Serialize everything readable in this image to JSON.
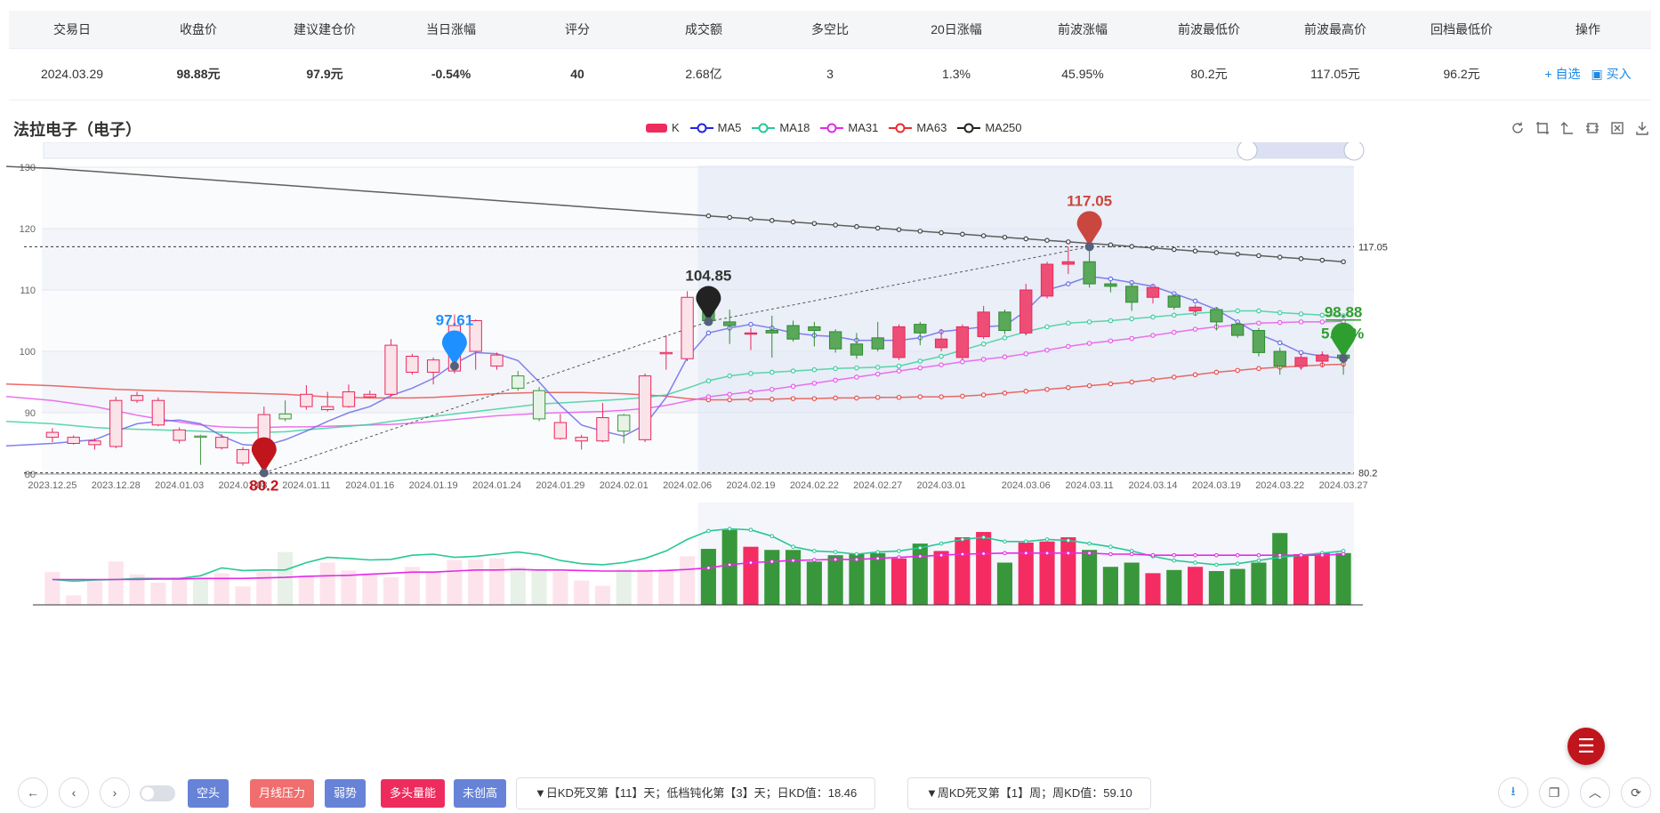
{
  "table": {
    "headers": [
      "交易日",
      "收盘价",
      "建议建仓价",
      "当日涨幅",
      "评分",
      "成交额",
      "多空比",
      "20日涨幅",
      "前波涨幅",
      "前波最低价",
      "前波最高价",
      "回档最低价",
      "操作"
    ],
    "row": {
      "date": "2024.03.29",
      "close": "98.88元",
      "suggest_price": "97.9元",
      "day_change": "-0.54%",
      "score": "40",
      "turnover": "2.68亿",
      "ls_ratio": "3",
      "change_20d": "1.3%",
      "prev_wave_change": "45.95%",
      "prev_wave_low": "80.2元",
      "prev_wave_high": "117.05元",
      "pullback_low": "96.2元",
      "action_watch": "+ 自选",
      "action_buy": "买入"
    }
  },
  "stock_name": "法拉电子（电子）",
  "legend": [
    {
      "name": "K",
      "color": "#ee2b5d"
    },
    {
      "name": "MA5",
      "color": "#2323e6"
    },
    {
      "name": "MA18",
      "color": "#27c795"
    },
    {
      "name": "MA31",
      "color": "#e629e6"
    },
    {
      "name": "MA63",
      "color": "#e82e2e"
    },
    {
      "name": "MA250",
      "color": "#222222"
    }
  ],
  "tool_icons": [
    "refresh-icon",
    "zoom-area-icon",
    "zoom-reset-icon",
    "restore-icon",
    "clear-icon",
    "download-icon"
  ],
  "chart_data": {
    "type": "candlestick",
    "ylim": [
      80,
      130
    ],
    "yticks": [
      80,
      90,
      100,
      110,
      120,
      130
    ],
    "date_labels": [
      "2023.12.25",
      "2023.12.28",
      "2024.01.03",
      "2024.01.08",
      "2024.01.11",
      "2024.01.16",
      "2024.01.19",
      "2024.01.24",
      "2024.01.29",
      "2024.02.01",
      "2024.02.06",
      "2024.02.19",
      "2024.02.22",
      "2024.02.27",
      "2024.03.01",
      "2024.03.06",
      "2024.03.11",
      "2024.03.14",
      "2024.03.19",
      "2024.03.22",
      "2024.03.27"
    ],
    "candles": [
      {
        "o": 86.0,
        "c": 86.8,
        "h": 87.5,
        "l": 85.2
      },
      {
        "o": 85.0,
        "c": 86.0,
        "h": 86.3,
        "l": 84.8
      },
      {
        "o": 84.8,
        "c": 85.4,
        "h": 85.8,
        "l": 84.0
      },
      {
        "o": 84.5,
        "c": 92.0,
        "h": 92.6,
        "l": 84.2
      },
      {
        "o": 92.0,
        "c": 92.8,
        "h": 93.4,
        "l": 91.6
      },
      {
        "o": 88.0,
        "c": 92.0,
        "h": 92.5,
        "l": 87.8
      },
      {
        "o": 85.5,
        "c": 87.2,
        "h": 87.6,
        "l": 85.0
      },
      {
        "o": 86.2,
        "c": 86.0,
        "h": 86.4,
        "l": 81.5
      },
      {
        "o": 84.3,
        "c": 86.0,
        "h": 86.5,
        "l": 84.0
      },
      {
        "o": 81.8,
        "c": 84.0,
        "h": 84.4,
        "l": 81.4
      },
      {
        "o": 82.6,
        "c": 89.7,
        "h": 91.0,
        "l": 82.3
      },
      {
        "o": 89.8,
        "c": 89.0,
        "h": 92.0,
        "l": 88.6
      },
      {
        "o": 91.0,
        "c": 93.0,
        "h": 94.5,
        "l": 90.5
      },
      {
        "o": 90.5,
        "c": 91.0,
        "h": 93.4,
        "l": 90.2
      },
      {
        "o": 91.0,
        "c": 93.4,
        "h": 94.6,
        "l": 90.8
      },
      {
        "o": 92.6,
        "c": 93.0,
        "h": 93.6,
        "l": 92.4
      },
      {
        "o": 93.0,
        "c": 101.0,
        "h": 102.0,
        "l": 92.6
      },
      {
        "o": 96.6,
        "c": 99.2,
        "h": 99.6,
        "l": 96.2
      },
      {
        "o": 96.6,
        "c": 98.6,
        "h": 99.0,
        "l": 94.6
      },
      {
        "o": 96.8,
        "c": 104.2,
        "h": 106.0,
        "l": 96.4
      },
      {
        "o": 100.0,
        "c": 105.0,
        "h": 105.2,
        "l": 97.0
      },
      {
        "o": 97.6,
        "c": 99.4,
        "h": 99.8,
        "l": 97.0
      },
      {
        "o": 96.0,
        "c": 94.0,
        "h": 96.8,
        "l": 93.6
      },
      {
        "o": 93.6,
        "c": 89.0,
        "h": 94.2,
        "l": 88.6
      },
      {
        "o": 85.8,
        "c": 88.4,
        "h": 89.8,
        "l": 85.6
      },
      {
        "o": 85.4,
        "c": 86.0,
        "h": 86.4,
        "l": 84.0
      },
      {
        "o": 85.4,
        "c": 89.2,
        "h": 91.6,
        "l": 85.2
      },
      {
        "o": 89.6,
        "c": 87.0,
        "h": 89.8,
        "l": 85.0
      },
      {
        "o": 85.6,
        "c": 96.0,
        "h": 96.4,
        "l": 85.2
      },
      {
        "o": 99.6,
        "c": 99.8,
        "h": 102.6,
        "l": 97.0
      },
      {
        "o": 98.8,
        "c": 108.8,
        "h": 109.8,
        "l": 98.4
      },
      {
        "o": 107.0,
        "c": 105.0,
        "h": 107.6,
        "l": 104.8
      },
      {
        "o": 104.8,
        "c": 104.2,
        "h": 106.8,
        "l": 101.2
      },
      {
        "o": 102.8,
        "c": 103.0,
        "h": 103.8,
        "l": 100.2
      },
      {
        "o": 103.4,
        "c": 103.0,
        "h": 105.8,
        "l": 99.0
      },
      {
        "o": 104.2,
        "c": 102.0,
        "h": 105.0,
        "l": 101.6
      },
      {
        "o": 104.0,
        "c": 103.4,
        "h": 104.8,
        "l": 100.8
      },
      {
        "o": 103.2,
        "c": 100.4,
        "h": 103.6,
        "l": 99.8
      },
      {
        "o": 101.2,
        "c": 99.4,
        "h": 103.0,
        "l": 98.8
      },
      {
        "o": 102.2,
        "c": 100.4,
        "h": 104.8,
        "l": 100.0
      },
      {
        "o": 99.0,
        "c": 104.0,
        "h": 104.4,
        "l": 98.6
      },
      {
        "o": 104.4,
        "c": 103.0,
        "h": 104.8,
        "l": 101.0
      },
      {
        "o": 100.6,
        "c": 102.0,
        "h": 103.6,
        "l": 100.0
      },
      {
        "o": 99.0,
        "c": 104.0,
        "h": 104.4,
        "l": 98.6
      },
      {
        "o": 102.4,
        "c": 106.4,
        "h": 107.4,
        "l": 102.0
      },
      {
        "o": 106.4,
        "c": 103.4,
        "h": 106.8,
        "l": 102.8
      },
      {
        "o": 103.0,
        "c": 110.0,
        "h": 111.0,
        "l": 102.6
      },
      {
        "o": 109.0,
        "c": 114.2,
        "h": 114.6,
        "l": 108.6
      },
      {
        "o": 114.2,
        "c": 114.6,
        "h": 117.05,
        "l": 112.6
      },
      {
        "o": 114.6,
        "c": 111.0,
        "h": 116.6,
        "l": 110.4
      },
      {
        "o": 111.0,
        "c": 110.6,
        "h": 111.4,
        "l": 109.6
      },
      {
        "o": 110.6,
        "c": 108.0,
        "h": 111.2,
        "l": 106.6
      },
      {
        "o": 108.8,
        "c": 110.4,
        "h": 110.8,
        "l": 107.8
      },
      {
        "o": 109.0,
        "c": 107.2,
        "h": 109.4,
        "l": 106.8
      },
      {
        "o": 106.6,
        "c": 107.2,
        "h": 107.6,
        "l": 105.8
      },
      {
        "o": 106.8,
        "c": 104.8,
        "h": 107.2,
        "l": 103.4
      },
      {
        "o": 104.4,
        "c": 102.6,
        "h": 104.8,
        "l": 102.2
      },
      {
        "o": 103.4,
        "c": 99.8,
        "h": 103.8,
        "l": 99.2
      },
      {
        "o": 100.0,
        "c": 97.6,
        "h": 100.6,
        "l": 96.2
      },
      {
        "o": 97.6,
        "c": 99.0,
        "h": 99.6,
        "l": 97.0
      },
      {
        "o": 98.4,
        "c": 99.4,
        "h": 100.0,
        "l": 97.4
      },
      {
        "o": 99.4,
        "c": 98.88,
        "h": 101.2,
        "l": 96.2
      }
    ],
    "ma5": [
      85,
      85.3,
      85.6,
      87,
      88.2,
      88.6,
      88.8,
      88.2,
      86.2,
      84.8,
      84.6,
      85.6,
      87,
      88.6,
      90,
      91,
      92.8,
      94,
      95.6,
      98,
      99.8,
      99.6,
      98.5,
      95,
      91.2,
      88,
      87,
      86.2,
      88,
      92.5,
      99,
      103,
      103.8,
      104.4,
      103.8,
      103,
      102.6,
      102.4,
      101.8,
      101.8,
      101.8,
      102.2,
      103.2,
      103.6,
      104,
      104.2,
      106.6,
      110,
      111,
      112.2,
      111.8,
      111.2,
      110.6,
      109.4,
      108.2,
      106.8,
      104.8,
      102.8,
      101.4,
      99.8,
      99.2,
      98.9
    ],
    "ma18": [
      88.2,
      87.9,
      87.6,
      87.4,
      87.3,
      87.2,
      87.1,
      87.0,
      86.8,
      86.7,
      86.8,
      86.9,
      87.2,
      87.5,
      87.8,
      88.1,
      88.6,
      89.0,
      89.4,
      89.8,
      90.2,
      90.6,
      91.0,
      91.4,
      91.6,
      91.8,
      92.0,
      92.2,
      92.5,
      92.9,
      94.0,
      95.2,
      96.0,
      96.4,
      96.6,
      96.8,
      97.0,
      97.2,
      97.3,
      97.4,
      97.6,
      98.4,
      99.2,
      100.2,
      101.2,
      102.2,
      103.2,
      104.0,
      104.6,
      104.8,
      105.0,
      105.3,
      105.6,
      105.9,
      106.2,
      106.4,
      106.6,
      106.6,
      106.3,
      106.1,
      105.9,
      105.8
    ],
    "ma31": [
      92.0,
      91.5,
      91.0,
      90.3,
      89.6,
      89.0,
      88.5,
      88.0,
      87.7,
      87.6,
      87.6,
      87.7,
      87.7,
      87.8,
      87.9,
      88.0,
      88.1,
      88.3,
      88.6,
      88.9,
      89.2,
      89.5,
      89.7,
      89.9,
      90.0,
      90.1,
      90.2,
      90.4,
      90.7,
      91.2,
      91.9,
      92.6,
      93.0,
      93.4,
      93.8,
      94.3,
      94.8,
      95.3,
      95.8,
      96.3,
      96.8,
      97.3,
      97.8,
      98.3,
      98.7,
      99.1,
      99.6,
      100.2,
      100.8,
      101.3,
      101.7,
      102.1,
      102.6,
      103.1,
      103.6,
      104.0,
      104.3,
      104.6,
      104.7,
      104.8,
      104.8,
      104.9
    ],
    "ma63": [
      94.4,
      94.2,
      94.0,
      93.8,
      93.7,
      93.6,
      93.5,
      93.4,
      93.3,
      93.2,
      93.1,
      93.0,
      92.8,
      92.6,
      92.5,
      92.4,
      92.4,
      92.4,
      92.5,
      92.7,
      92.9,
      93.1,
      93.2,
      93.3,
      93.3,
      93.3,
      93.2,
      93.1,
      92.9,
      92.7,
      92.3,
      92.1,
      92.1,
      92.2,
      92.2,
      92.3,
      92.3,
      92.4,
      92.4,
      92.5,
      92.5,
      92.6,
      92.6,
      92.7,
      92.9,
      93.2,
      93.5,
      93.8,
      94.1,
      94.4,
      94.7,
      95.0,
      95.4,
      95.8,
      96.2,
      96.6,
      96.9,
      97.2,
      97.4,
      97.6,
      97.8,
      97.9
    ],
    "ma250_start": 129.8,
    "ma250_end": 114.6,
    "markers": [
      {
        "label": "97.61",
        "index": 19,
        "value": 97.61,
        "color": "#1e90ff"
      },
      {
        "label": "104.85",
        "index": 31,
        "value": 104.85,
        "color": "#222222"
      },
      {
        "label": "117.05",
        "index": 49,
        "value": 117.05,
        "color": "#c9473f"
      },
      {
        "label": "80.2",
        "index": 10,
        "value": 80.2,
        "color": "#c0151c"
      },
      {
        "label": "98.88",
        "index": 61,
        "value": 98.88,
        "color": "#2e9e2e"
      }
    ],
    "marker_note": "5.09%",
    "ref_lines": [
      {
        "value": 117.05,
        "label": "117.05"
      },
      {
        "value": 80.2,
        "label": "80.2"
      }
    ],
    "volume": [
      0.62,
      0.18,
      0.45,
      0.82,
      0.58,
      0.42,
      0.52,
      0.5,
      0.6,
      0.35,
      0.62,
      1.0,
      0.55,
      0.8,
      0.65,
      0.6,
      0.52,
      0.72,
      0.62,
      0.85,
      0.86,
      0.88,
      0.72,
      0.66,
      0.62,
      0.46,
      0.36,
      0.68,
      0.68,
      0.68,
      0.92,
      1.06,
      1.42,
      1.1,
      1.04,
      1.04,
      0.82,
      0.94,
      0.96,
      0.98,
      0.88,
      1.16,
      1.02,
      1.28,
      1.38,
      0.8,
      1.18,
      1.2,
      1.28,
      1.04,
      0.72,
      0.8,
      0.6,
      0.66,
      0.72,
      0.64,
      0.68,
      0.8,
      1.36,
      0.96,
      0.98,
      0.98
    ],
    "vol_ma1": [
      0.48,
      0.45,
      0.47,
      0.48,
      0.5,
      0.5,
      0.5,
      0.55,
      0.7,
      0.65,
      0.66,
      0.66,
      0.8,
      0.9,
      0.88,
      0.85,
      0.86,
      0.94,
      0.96,
      0.9,
      0.92,
      0.96,
      1.0,
      0.95,
      0.84,
      0.78,
      0.76,
      0.8,
      0.88,
      1.02,
      1.24,
      1.4,
      1.44,
      1.42,
      1.3,
      1.1,
      1.02,
      1.0,
      0.96,
      1.0,
      1.02,
      1.08,
      1.16,
      1.24,
      1.28,
      1.2,
      1.2,
      1.24,
      1.22,
      1.16,
      1.1,
      1.02,
      0.92,
      0.84,
      0.8,
      0.76,
      0.78,
      0.84,
      0.9,
      0.94,
      0.98,
      1.02
    ],
    "vol_ma2": [
      0.48,
      0.48,
      0.48,
      0.48,
      0.48,
      0.49,
      0.49,
      0.5,
      0.5,
      0.5,
      0.51,
      0.52,
      0.54,
      0.55,
      0.56,
      0.58,
      0.6,
      0.62,
      0.62,
      0.64,
      0.66,
      0.66,
      0.67,
      0.66,
      0.66,
      0.65,
      0.64,
      0.64,
      0.64,
      0.65,
      0.67,
      0.7,
      0.76,
      0.8,
      0.82,
      0.84,
      0.85,
      0.86,
      0.86,
      0.88,
      0.9,
      0.92,
      0.94,
      0.96,
      0.97,
      0.98,
      0.98,
      0.98,
      0.98,
      0.98,
      0.96,
      0.96,
      0.94,
      0.94,
      0.94,
      0.94,
      0.94,
      0.94,
      0.94,
      0.94,
      0.94,
      0.96
    ]
  },
  "bottom": {
    "tags": [
      {
        "label": "空头",
        "color": "#6683d8"
      },
      {
        "label": "月线压力",
        "color": "#f06e6e"
      },
      {
        "label": "弱势",
        "color": "#6683d8"
      },
      {
        "label": "多头量能",
        "color": "#ee2b5d"
      },
      {
        "label": "未创高",
        "color": "#6683d8"
      }
    ],
    "info1": "▼日KD死叉第【11】天；低档钝化第【3】天；日KD值：18.46",
    "info2": "▼周KD死叉第【1】周；周KD值：59.10"
  }
}
